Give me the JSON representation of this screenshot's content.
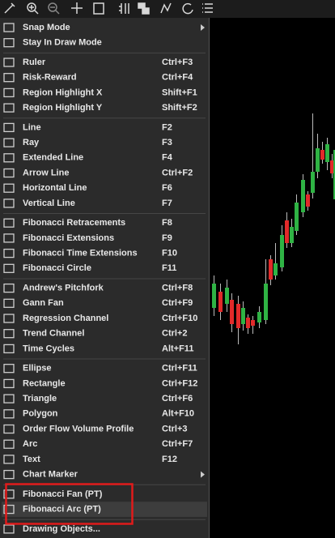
{
  "menu": {
    "groups": [
      [
        {
          "label": "Snap Mode",
          "submenu": true
        },
        {
          "label": "Stay In Draw Mode"
        }
      ],
      [
        {
          "label": "Ruler",
          "shortcut": "Ctrl+F3"
        },
        {
          "label": "Risk-Reward",
          "shortcut": "Ctrl+F4"
        },
        {
          "label": "Region Highlight X",
          "shortcut": "Shift+F1"
        },
        {
          "label": "Region Highlight Y",
          "shortcut": "Shift+F2"
        }
      ],
      [
        {
          "label": "Line",
          "shortcut": "F2"
        },
        {
          "label": "Ray",
          "shortcut": "F3"
        },
        {
          "label": "Extended Line",
          "shortcut": "F4"
        },
        {
          "label": "Arrow Line",
          "shortcut": "Ctrl+F2"
        },
        {
          "label": "Horizontal Line",
          "shortcut": "F6"
        },
        {
          "label": "Vertical Line",
          "shortcut": "F7"
        }
      ],
      [
        {
          "label": "Fibonacci Retracements",
          "shortcut": "F8"
        },
        {
          "label": "Fibonacci Extensions",
          "shortcut": "F9"
        },
        {
          "label": "Fibonacci Time Extensions",
          "shortcut": "F10"
        },
        {
          "label": "Fibonacci Circle",
          "shortcut": "F11"
        }
      ],
      [
        {
          "label": "Andrew's Pitchfork",
          "shortcut": "Ctrl+F8"
        },
        {
          "label": "Gann Fan",
          "shortcut": "Ctrl+F9"
        },
        {
          "label": "Regression Channel",
          "shortcut": "Ctrl+F10"
        },
        {
          "label": "Trend Channel",
          "shortcut": "Ctrl+2"
        },
        {
          "label": "Time Cycles",
          "shortcut": "Alt+F11"
        }
      ],
      [
        {
          "label": "Ellipse",
          "shortcut": "Ctrl+F11"
        },
        {
          "label": "Rectangle",
          "shortcut": "Ctrl+F12"
        },
        {
          "label": "Triangle",
          "shortcut": "Ctrl+F6"
        },
        {
          "label": "Polygon",
          "shortcut": "Alt+F10"
        },
        {
          "label": "Order Flow Volume Profile",
          "shortcut": "Ctrl+3"
        },
        {
          "label": "Arc",
          "shortcut": "Ctrl+F7"
        },
        {
          "label": "Text",
          "shortcut": "F12"
        },
        {
          "label": "Chart Marker",
          "submenu": true
        }
      ],
      [
        {
          "label": "Fibonacci Fan (PT)"
        },
        {
          "label": "Fibonacci Arc (PT)",
          "highlighted": true
        }
      ],
      [
        {
          "label": "Drawing Objects..."
        }
      ]
    ]
  }
}
